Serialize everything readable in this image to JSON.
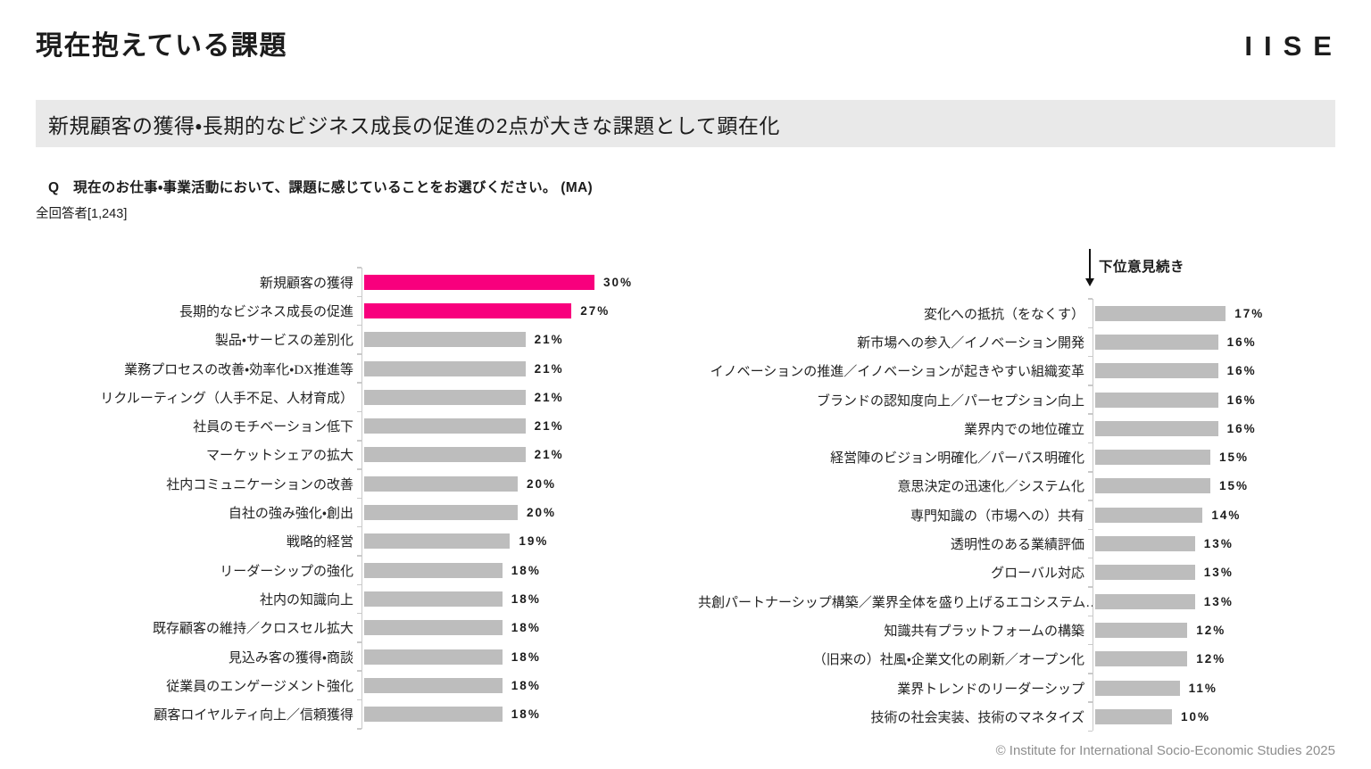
{
  "header": {
    "title": "現在抱えている課題",
    "logo": "IISE"
  },
  "banner": {
    "text": "新規顧客の獲得・長期的なビジネス成長の促進の2点が大きな課題として顕在化"
  },
  "question": {
    "text": "Q　現在のお仕事・事業活動において、課題に感じていることをお選びください。 (MA)",
    "respondents": "全回答者[1,243]"
  },
  "continuation": {
    "label": "下位意見続き"
  },
  "footer": {
    "copyright": "© Institute for International Socio-Economic Studies 2025"
  },
  "colors": {
    "highlight": "#F8007D",
    "bar": "#BDBDBD",
    "axis": "#C9C9C9",
    "banner_bg": "#E9E9E9",
    "text": "#1C1C1C",
    "footer_text": "#8E8E8E"
  },
  "chart_data": [
    {
      "type": "bar",
      "orientation": "horizontal",
      "value_unit": "%",
      "xlim": [
        0,
        30
      ],
      "grid": false,
      "legend": false,
      "highlight_indices": [
        0,
        1
      ],
      "categories": [
        "新規顧客の獲得",
        "長期的なビジネス成長の促進",
        "製品・サービスの差別化",
        "業務プロセスの改善・効率化・DX推進等",
        "リクルーティング（人手不足、人材育成）",
        "社員のモチベーション低下",
        "マーケットシェアの拡大",
        "社内コミュニケーションの改善",
        "自社の強み強化・創出",
        "戦略的経営",
        "リーダーシップの強化",
        "社内の知識向上",
        "既存顧客の維持／クロスセル拡大",
        "見込み客の獲得・商談",
        "従業員のエンゲージメント強化",
        "顧客ロイヤルティ向上／信頼獲得"
      ],
      "values": [
        30,
        27,
        21,
        21,
        21,
        21,
        21,
        20,
        20,
        19,
        18,
        18,
        18,
        18,
        18,
        18
      ]
    },
    {
      "type": "bar",
      "orientation": "horizontal",
      "value_unit": "%",
      "xlim": [
        0,
        30
      ],
      "grid": false,
      "legend": false,
      "annotation": "下位意見続き",
      "highlight_indices": [],
      "categories": [
        "変化への抵抗（をなくす）",
        "新市場への参入／イノベーション開発",
        "イノベーションの推進／イノベーションが起きやすい組織変革",
        "ブランドの認知度向上／パーセプション向上",
        "業界内での地位確立",
        "経営陣のビジョン明確化／パーパス明確化",
        "意思決定の迅速化／システム化",
        "専門知識の（市場への）共有",
        "透明性のある業績評価",
        "グローバル対応",
        "共創パートナーシップ構築／業界全体を盛り上げるエコシステム…",
        "知識共有プラットフォームの構築",
        "（旧来の）社風・企業文化の刷新／オープン化",
        "業界トレンドのリーダーシップ",
        "技術の社会実装、技術のマネタイズ"
      ],
      "values": [
        17,
        16,
        16,
        16,
        16,
        15,
        15,
        14,
        13,
        13,
        13,
        12,
        12,
        11,
        10
      ]
    }
  ]
}
